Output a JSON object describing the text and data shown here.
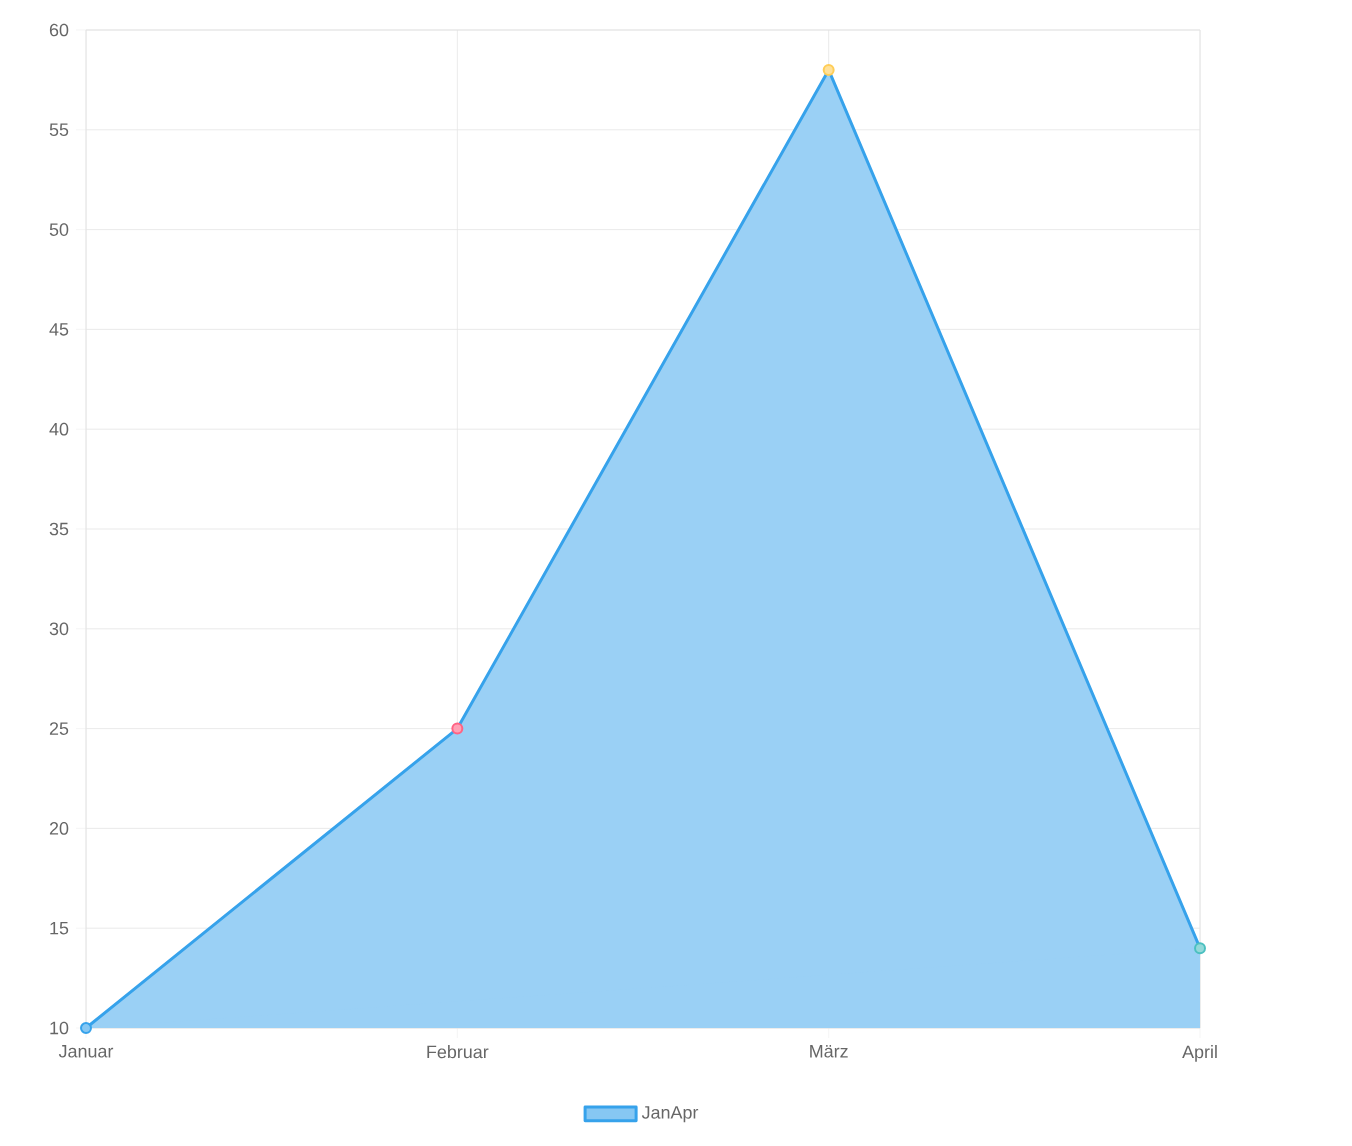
{
  "chart_data": {
    "type": "area",
    "categories": [
      "Januar",
      "Februar",
      "März",
      "April"
    ],
    "series": [
      {
        "name": "JanApr",
        "color": "#36a2eb",
        "values": [
          10,
          25,
          58,
          14
        ],
        "colors": [
          "#36a2eb",
          "#ff6384",
          "#ffcd56",
          "#4bc0c0"
        ]
      }
    ],
    "ylim": [
      10,
      60
    ],
    "yticks": [
      10,
      15,
      20,
      25,
      30,
      35,
      40,
      45,
      50,
      55,
      60
    ],
    "grid": true,
    "legend": "bottom",
    "marker": "circle"
  }
}
